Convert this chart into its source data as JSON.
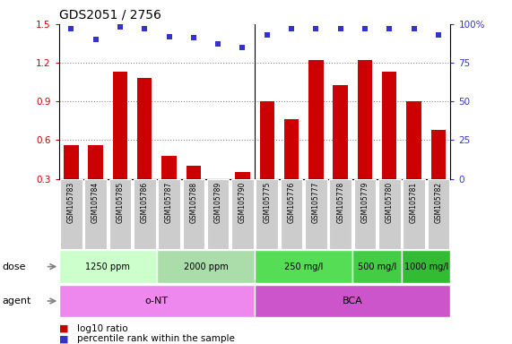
{
  "title": "GDS2051 / 2756",
  "samples": [
    "GSM105783",
    "GSM105784",
    "GSM105785",
    "GSM105786",
    "GSM105787",
    "GSM105788",
    "GSM105789",
    "GSM105790",
    "GSM105775",
    "GSM105776",
    "GSM105777",
    "GSM105778",
    "GSM105779",
    "GSM105780",
    "GSM105781",
    "GSM105782"
  ],
  "log10_ratio": [
    0.56,
    0.56,
    1.13,
    1.08,
    0.48,
    0.4,
    0.28,
    0.35,
    0.9,
    0.76,
    1.22,
    1.03,
    1.22,
    1.13,
    0.9,
    0.68
  ],
  "percentile_rank": [
    97,
    90,
    98,
    97,
    92,
    91,
    87,
    85,
    93,
    97,
    97,
    97,
    97,
    97,
    97,
    93
  ],
  "bar_color": "#cc0000",
  "dot_color": "#3333cc",
  "ylim_left": [
    0.3,
    1.5
  ],
  "ylim_right": [
    0,
    100
  ],
  "yticks_left": [
    0.3,
    0.6,
    0.9,
    1.2,
    1.5
  ],
  "yticks_right": [
    0,
    25,
    50,
    75,
    100
  ],
  "dose_groups": [
    {
      "label": "1250 ppm",
      "start": 0,
      "end": 3,
      "color": "#ccffcc"
    },
    {
      "label": "2000 ppm",
      "start": 4,
      "end": 7,
      "color": "#aaddaa"
    },
    {
      "label": "250 mg/l",
      "start": 8,
      "end": 11,
      "color": "#55dd55"
    },
    {
      "label": "500 mg/l",
      "start": 12,
      "end": 13,
      "color": "#44cc44"
    },
    {
      "label": "1000 mg/l",
      "start": 14,
      "end": 15,
      "color": "#33bb33"
    }
  ],
  "agent_groups": [
    {
      "label": "o-NT",
      "start": 0,
      "end": 7,
      "color": "#ee88ee"
    },
    {
      "label": "BCA",
      "start": 8,
      "end": 15,
      "color": "#cc55cc"
    }
  ],
  "legend_bar_label": "log10 ratio",
  "legend_dot_label": "percentile rank within the sample",
  "axis_color_left": "#cc0000",
  "axis_color_right": "#3333cc",
  "bg_color": "#ffffff",
  "label_bg_color": "#cccccc",
  "grid_color": "#888888",
  "separator_color": "#ffffff"
}
